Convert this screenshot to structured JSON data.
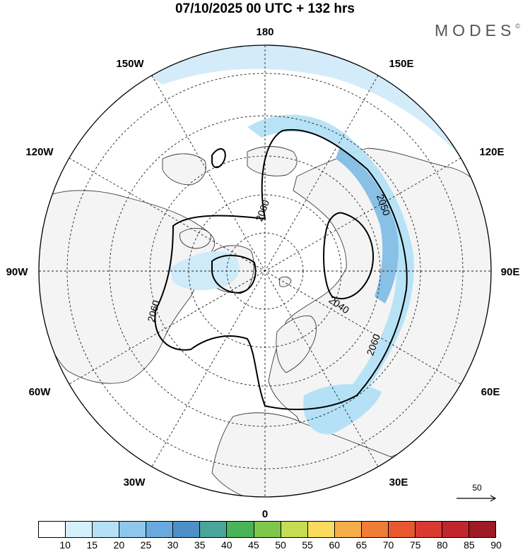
{
  "title": "07/10/2025  00 UTC  + 132 hrs",
  "brand": "MODES",
  "brand_mark": "©",
  "longitude_labels": [
    "180",
    "150E",
    "120E",
    "90E",
    "60E",
    "30E",
    "0",
    "30W",
    "60W",
    "90W",
    "120W",
    "150W"
  ],
  "contour_labels": [
    "2060",
    "2050",
    "2040",
    "2060",
    "2060"
  ],
  "reference_vector": {
    "value": "50"
  },
  "colorbar": {
    "levels": [
      "10",
      "15",
      "20",
      "25",
      "30",
      "35",
      "40",
      "45",
      "50",
      "55",
      "60",
      "65",
      "70",
      "75",
      "80",
      "85",
      "90"
    ],
    "colors": [
      "#ffffff",
      "#d6f0fb",
      "#b4e1f6",
      "#8dc8ec",
      "#6aa9dc",
      "#4f8fc7",
      "#4aa59a",
      "#48b457",
      "#7fc64d",
      "#c6dc52",
      "#fadc5c",
      "#f5ad4a",
      "#ef7d37",
      "#e9572f",
      "#d93a30",
      "#c1262c",
      "#9c1b24"
    ]
  },
  "colors": {
    "land": "#f4f4f4",
    "ocean": "#ffffff",
    "coast": "#3a3a3a",
    "graticule": "#222222",
    "jet_light": "#cfeaf8",
    "jet_mid": "#aed8f1",
    "jet_strong": "#88c0e6"
  }
}
